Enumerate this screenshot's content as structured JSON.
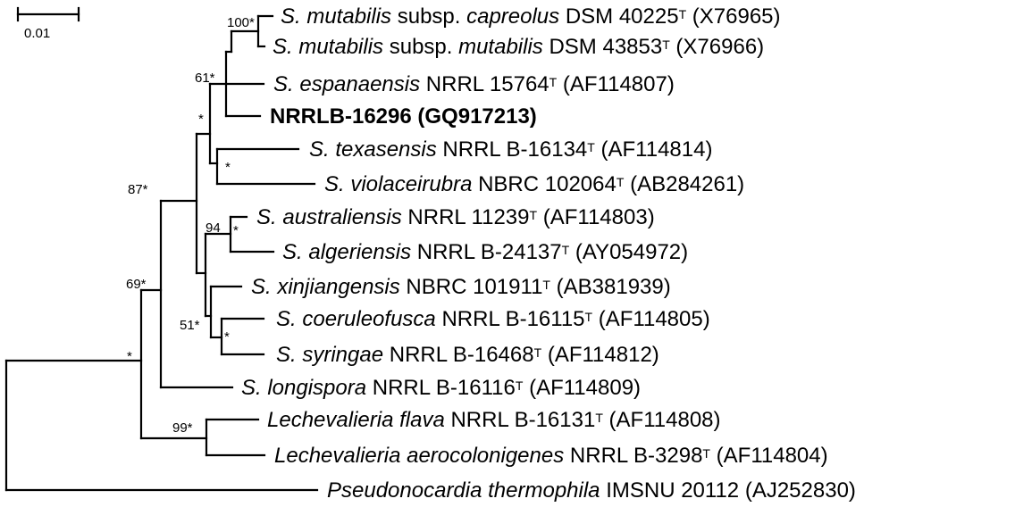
{
  "scale_bar": {
    "label": "0.01"
  },
  "taxa": [
    {
      "genus": "S.",
      "species": "mutabilis",
      "extra1": " subsp. ",
      "subsp": "capreolus",
      "strain": " DSM 40225",
      "type": "T",
      "acc": " (X76965)",
      "bold": false
    },
    {
      "genus": "S.",
      "species": "mutabilis",
      "extra1": " subsp. ",
      "subsp": "mutabilis",
      "strain": " DSM 43853",
      "type": "T",
      "acc": " (X76966)",
      "bold": false
    },
    {
      "genus": "S.",
      "species": "espanaensis",
      "extra1": "",
      "subsp": "",
      "strain": " NRRL 15764",
      "type": "T",
      "acc": " (AF114807)",
      "bold": false
    },
    {
      "text": "NRRLB-16296 (GQ917213)",
      "bold": true
    },
    {
      "genus": "S.",
      "species": "texasensis",
      "extra1": "",
      "subsp": "",
      "strain": " NRRL B-16134",
      "type": "T",
      "acc": " (AF114814)",
      "bold": false
    },
    {
      "genus": "S.",
      "species": "violaceirubra",
      "extra1": "",
      "subsp": "",
      "strain": " NBRC 102064",
      "type": "T",
      "acc": " (AB284261)",
      "bold": false
    },
    {
      "genus": "S.",
      "species": "australiensis",
      "extra1": "",
      "subsp": "",
      "strain": " NRRL 11239",
      "type": "T",
      "acc": " (AF114803)",
      "bold": false
    },
    {
      "genus": "S.",
      "species": "algeriensis",
      "extra1": "",
      "subsp": "",
      "strain": " NRRL B-24137",
      "type": "T",
      "acc": " (AY054972)",
      "bold": false
    },
    {
      "genus": "S.",
      "species": "xinjiangensis",
      "extra1": "",
      "subsp": "",
      "strain": " NBRC 101911",
      "type": "T",
      "acc": " (AB381939)",
      "bold": false
    },
    {
      "genus": "S.",
      "species": "coeruleofusca",
      "extra1": "",
      "subsp": "",
      "strain": " NRRL B-16115",
      "type": "T",
      "acc": " (AF114805)",
      "bold": false
    },
    {
      "genus": "S.",
      "species": "syringae",
      "extra1": "",
      "subsp": "",
      "strain": " NRRL B-16468",
      "type": "T",
      "acc": " (AF114812)",
      "bold": false
    },
    {
      "genus": "S.",
      "species": "longispora",
      "extra1": "",
      "subsp": "",
      "strain": " NRRL B-16116",
      "type": "T",
      "acc": " (AF114809)",
      "bold": false
    },
    {
      "genus": "Lechevalieria",
      "species": "flava",
      "extra1": "",
      "subsp": "",
      "strain": " NRRL B-16131",
      "type": "T",
      "acc": " (AF114808)",
      "bold": false
    },
    {
      "genus": "Lechevalieria",
      "species": "aerocolonigenes",
      "extra1": "",
      "subsp": "",
      "strain": " NRRL B-3298",
      "type": "T",
      "acc": " (AF114804)",
      "bold": false
    },
    {
      "genus": "Pseudonocardia",
      "species": "thermophila",
      "extra1": "",
      "subsp": "",
      "strain": " IMSNU 20112",
      "type": "",
      "acc": " (AJ252830)",
      "bold": false
    }
  ],
  "support_values": [
    "100*",
    "61*",
    "*",
    "*",
    "87*",
    "94",
    "*",
    "51*",
    "*",
    "69*",
    "*",
    "99*"
  ]
}
